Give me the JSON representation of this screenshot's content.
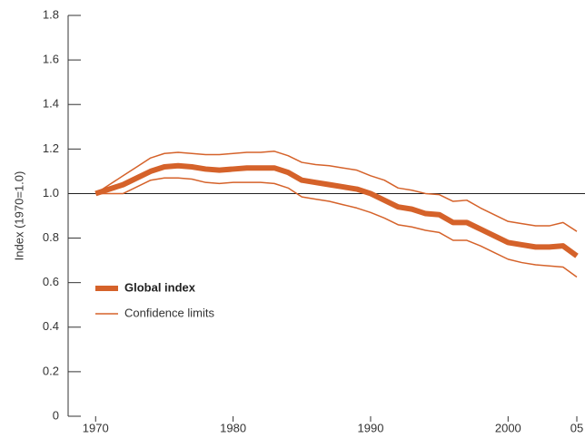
{
  "chart_data": {
    "type": "line",
    "y_label": "Index (1970=1.0)",
    "x": [
      1970,
      1971,
      1972,
      1973,
      1974,
      1975,
      1976,
      1977,
      1978,
      1979,
      1980,
      1981,
      1982,
      1983,
      1984,
      1985,
      1986,
      1987,
      1988,
      1989,
      1990,
      1991,
      1992,
      1993,
      1994,
      1995,
      1996,
      1997,
      1998,
      1999,
      2000,
      2001,
      2002,
      2003,
      2004,
      2005
    ],
    "series": [
      {
        "name": "Global index",
        "color": "#d5622a",
        "values": [
          1.0,
          1.02,
          1.04,
          1.07,
          1.1,
          1.12,
          1.125,
          1.12,
          1.11,
          1.105,
          1.11,
          1.115,
          1.115,
          1.115,
          1.095,
          1.06,
          1.05,
          1.04,
          1.03,
          1.02,
          1.0,
          0.97,
          0.94,
          0.93,
          0.91,
          0.905,
          0.87,
          0.87,
          0.84,
          0.81,
          0.78,
          0.77,
          0.76,
          0.76,
          0.765,
          0.72
        ]
      },
      {
        "name": "Confidence limits",
        "color": "#d5622a",
        "upper": [
          1.0,
          1.04,
          1.08,
          1.12,
          1.16,
          1.18,
          1.185,
          1.18,
          1.175,
          1.175,
          1.18,
          1.185,
          1.185,
          1.19,
          1.17,
          1.14,
          1.13,
          1.125,
          1.115,
          1.105,
          1.08,
          1.06,
          1.025,
          1.015,
          1.0,
          0.995,
          0.965,
          0.97,
          0.935,
          0.905,
          0.875,
          0.865,
          0.855,
          0.855,
          0.87,
          0.83
        ],
        "lower": [
          1.0,
          1.0,
          1.0,
          1.03,
          1.06,
          1.07,
          1.07,
          1.065,
          1.05,
          1.045,
          1.05,
          1.05,
          1.05,
          1.045,
          1.025,
          0.985,
          0.975,
          0.965,
          0.95,
          0.935,
          0.915,
          0.89,
          0.86,
          0.85,
          0.835,
          0.825,
          0.79,
          0.79,
          0.765,
          0.735,
          0.705,
          0.69,
          0.68,
          0.675,
          0.67,
          0.625
        ]
      }
    ],
    "reference_line": 1,
    "xlim": [
      1968,
      2005
    ],
    "xticks": [
      1970,
      1980,
      1990,
      2000,
      {
        "value": 2005,
        "label": "05"
      }
    ],
    "ylim": [
      0,
      1.8
    ],
    "yticks": [
      0,
      0.2,
      0.4,
      0.6,
      0.8,
      {
        "value": 1,
        "label": "1.0"
      },
      1.2,
      1.4,
      1.6,
      1.8
    ]
  }
}
